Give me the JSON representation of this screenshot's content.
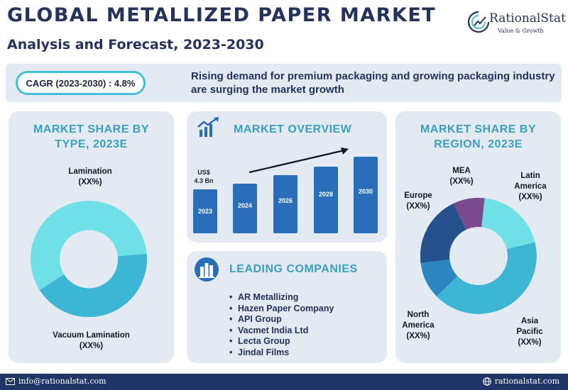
{
  "header": {
    "title": "GLOBAL METALLIZED PAPER MARKET",
    "subtitle": "Analysis and Forecast, 2023-2030"
  },
  "logo": {
    "name": "RationalStat",
    "tagline": "Value & Growth",
    "icon": "rationalstat-logo-icon"
  },
  "banner": {
    "cagr": "CAGR (2023-2030) : 4.8%",
    "text": "Rising demand for premium packaging and growing packaging industry are surging the market growth"
  },
  "type_card": {
    "title_line1": "MARKET SHARE BY",
    "title_line2": "TYPE, 2023E",
    "segments": [
      {
        "name": "Lamination",
        "value": "(XX%)",
        "color": "#6fe0e6"
      },
      {
        "name": "Vacuum Lamination",
        "value": "(XX%)",
        "color": "#3db5d4"
      }
    ]
  },
  "overview_card": {
    "title": "MARKET OVERVIEW",
    "icon": "growth-chart-icon",
    "value_label_line1": "US$",
    "value_label_line2": "4.3 Bn",
    "bars": [
      "2023",
      "2024",
      "2026",
      "2028",
      "2030"
    ],
    "bar_color": "#2a6db9"
  },
  "companies_card": {
    "title": "LEADING COMPANIES",
    "icon": "buildings-icon",
    "companies": [
      "AR Metallizing",
      "Hazen Paper Company",
      "API Group",
      "Vacmet India Ltd",
      "Lecta Group",
      "Jindal Films"
    ]
  },
  "region_card": {
    "title_line1": "MARKET SHARE BY",
    "title_line2": "REGION, 2023E",
    "segments": [
      {
        "name_line1": "MEA",
        "name_line2": "",
        "value": "(XX%)",
        "color": "#7a4a8c"
      },
      {
        "name_line1": "Latin",
        "name_line2": "America",
        "value": "(XX%)",
        "color": "#6fe0e6"
      },
      {
        "name_line1": "Asia",
        "name_line2": "Pacific",
        "value": "(XX%)",
        "color": "#3db5d4"
      },
      {
        "name_line1": "North",
        "name_line2": "America",
        "value": "(XX%)",
        "color": "#2b86c0"
      },
      {
        "name_line1": "Europe",
        "name_line2": "",
        "value": "(XX%)",
        "color": "#25518d"
      }
    ]
  },
  "footer": {
    "email": "info@rationalstat.com",
    "website": "rationalstat.com",
    "email_icon": "mail-icon",
    "web_icon": "globe-icon"
  }
}
